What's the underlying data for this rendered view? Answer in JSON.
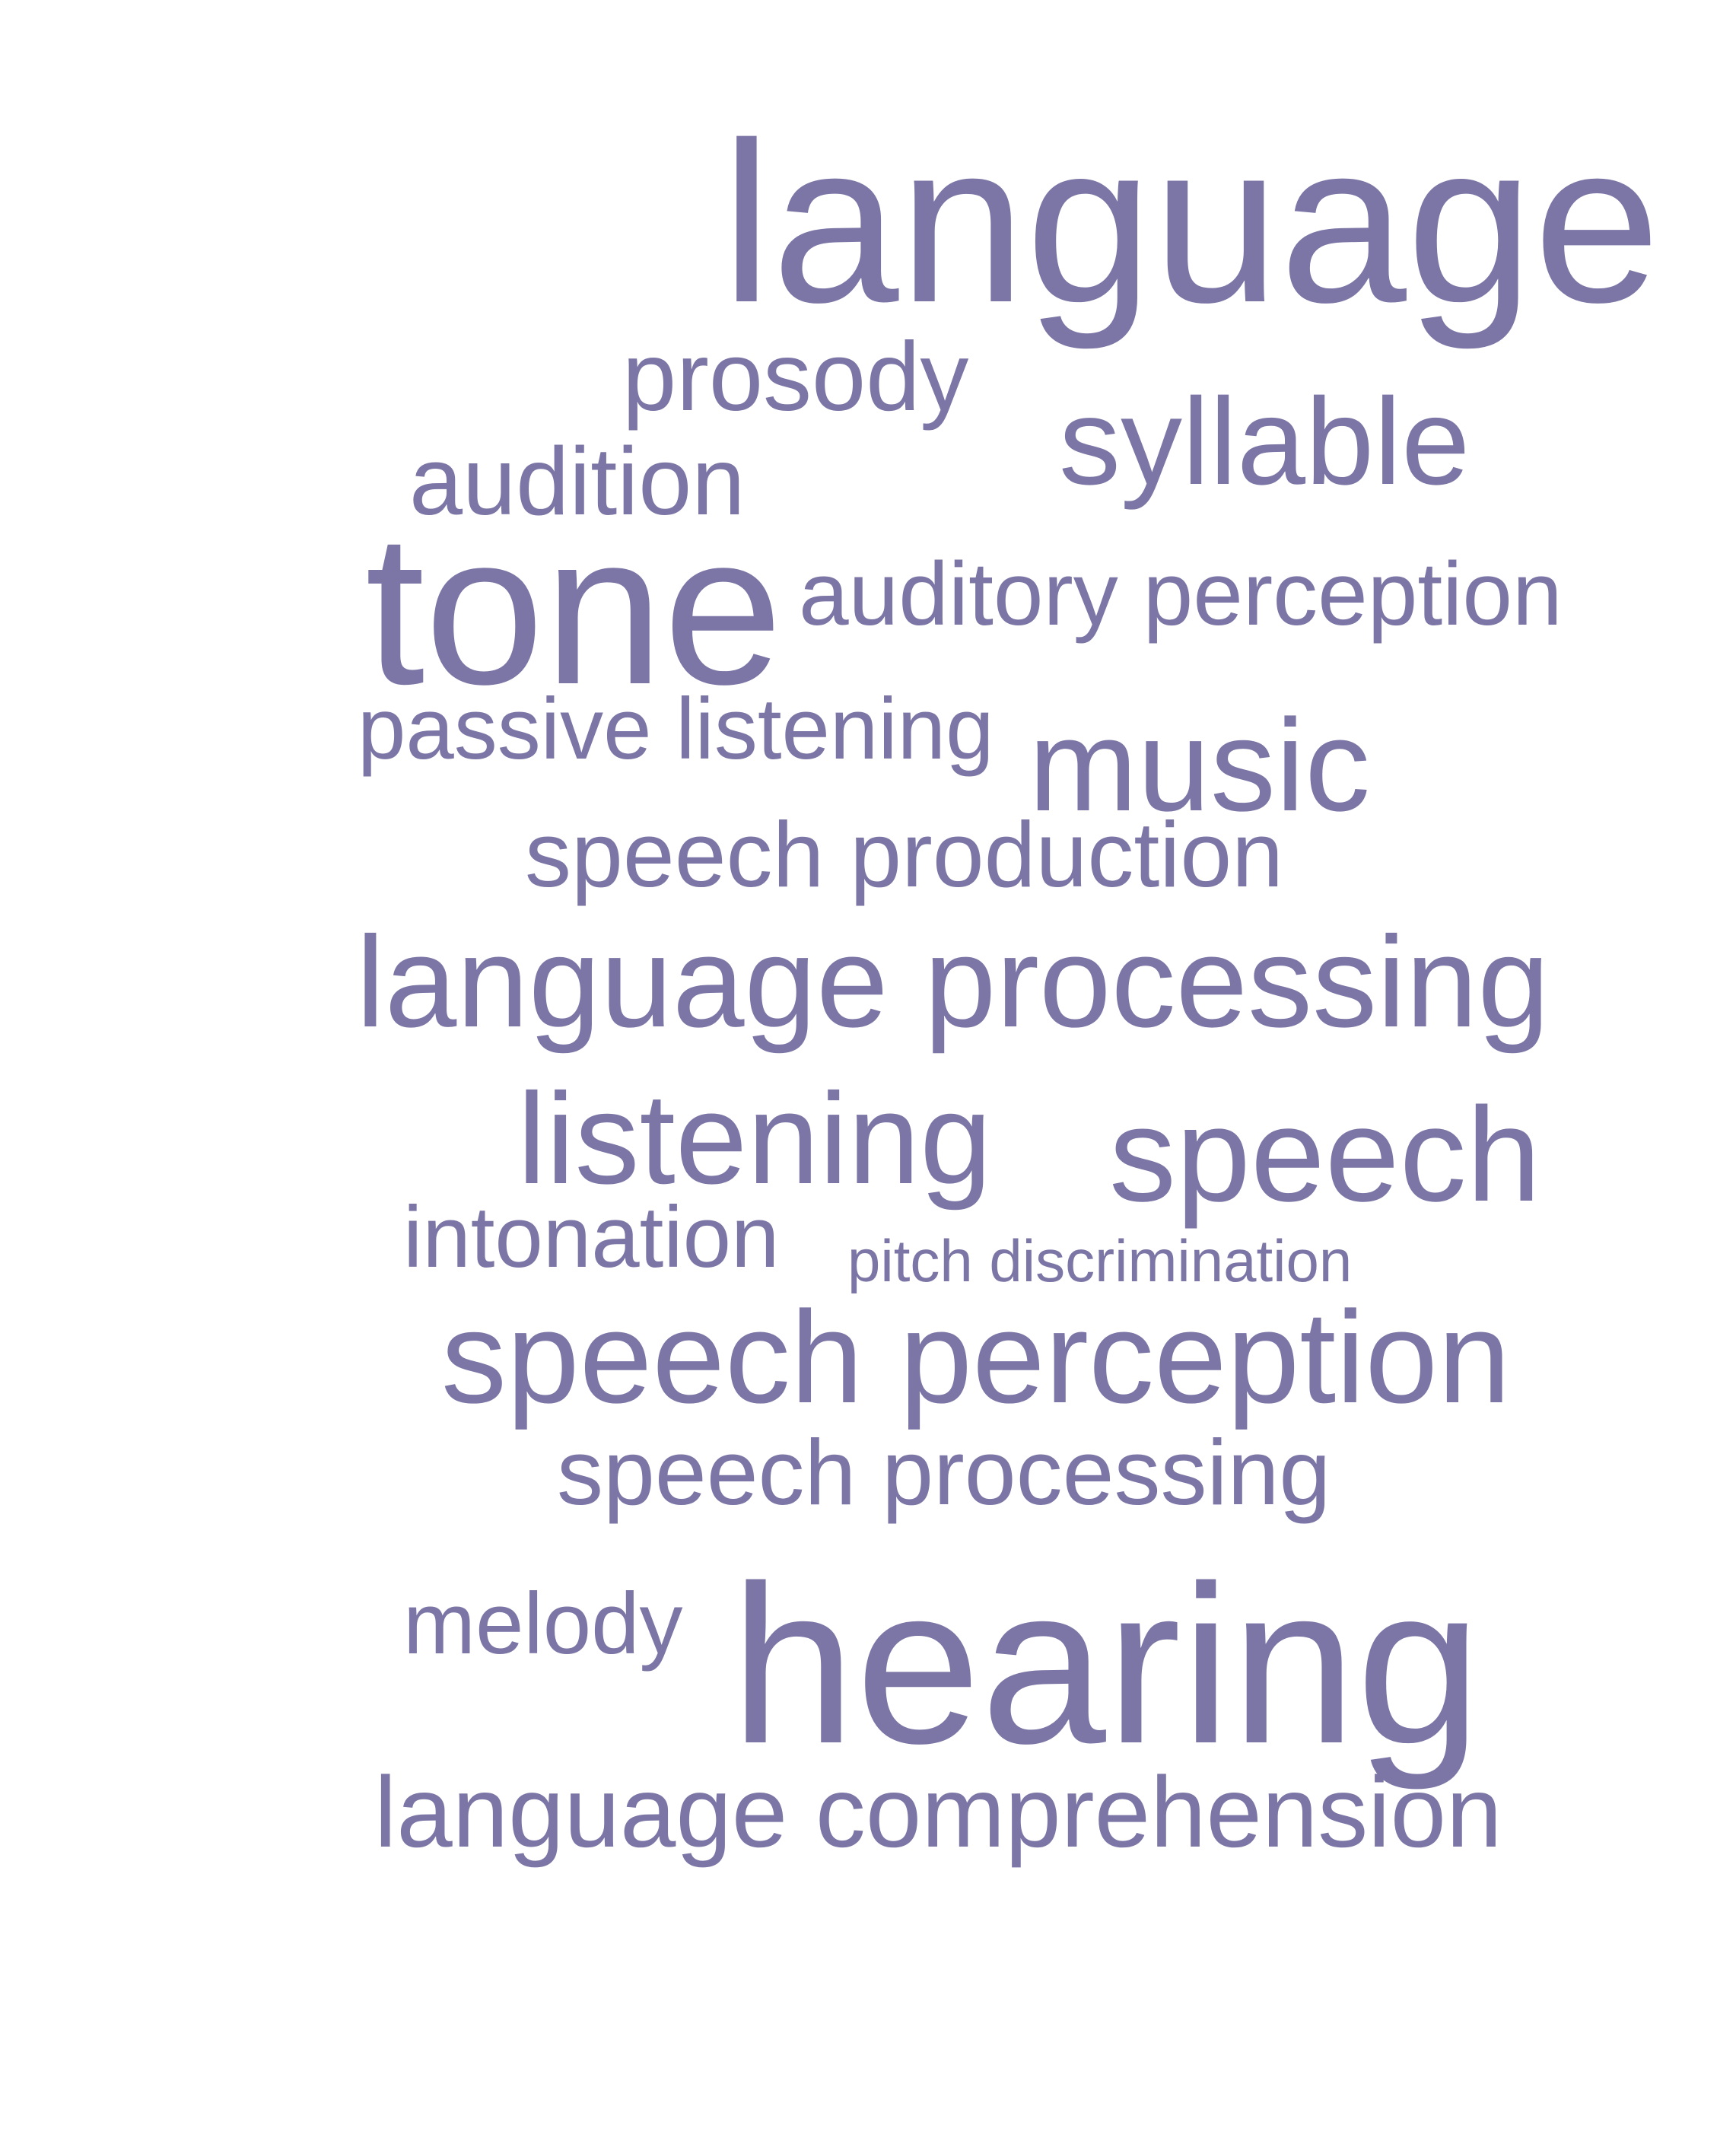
{
  "word_cloud": {
    "text_color": "#7b76a6",
    "background": "#ffffff",
    "words": [
      {
        "text": "language"
      },
      {
        "text": "prosody"
      },
      {
        "text": "syllable"
      },
      {
        "text": "audition"
      },
      {
        "text": "tone"
      },
      {
        "text": "auditory perception"
      },
      {
        "text": "passive listening"
      },
      {
        "text": "music"
      },
      {
        "text": "speech production"
      },
      {
        "text": "language processing"
      },
      {
        "text": "listening"
      },
      {
        "text": "speech"
      },
      {
        "text": "intonation"
      },
      {
        "text": "pitch discrimination"
      },
      {
        "text": "speech perception"
      },
      {
        "text": "speech processing"
      },
      {
        "text": "melody"
      },
      {
        "text": "hearing"
      },
      {
        "text": "language comprehension"
      }
    ]
  }
}
